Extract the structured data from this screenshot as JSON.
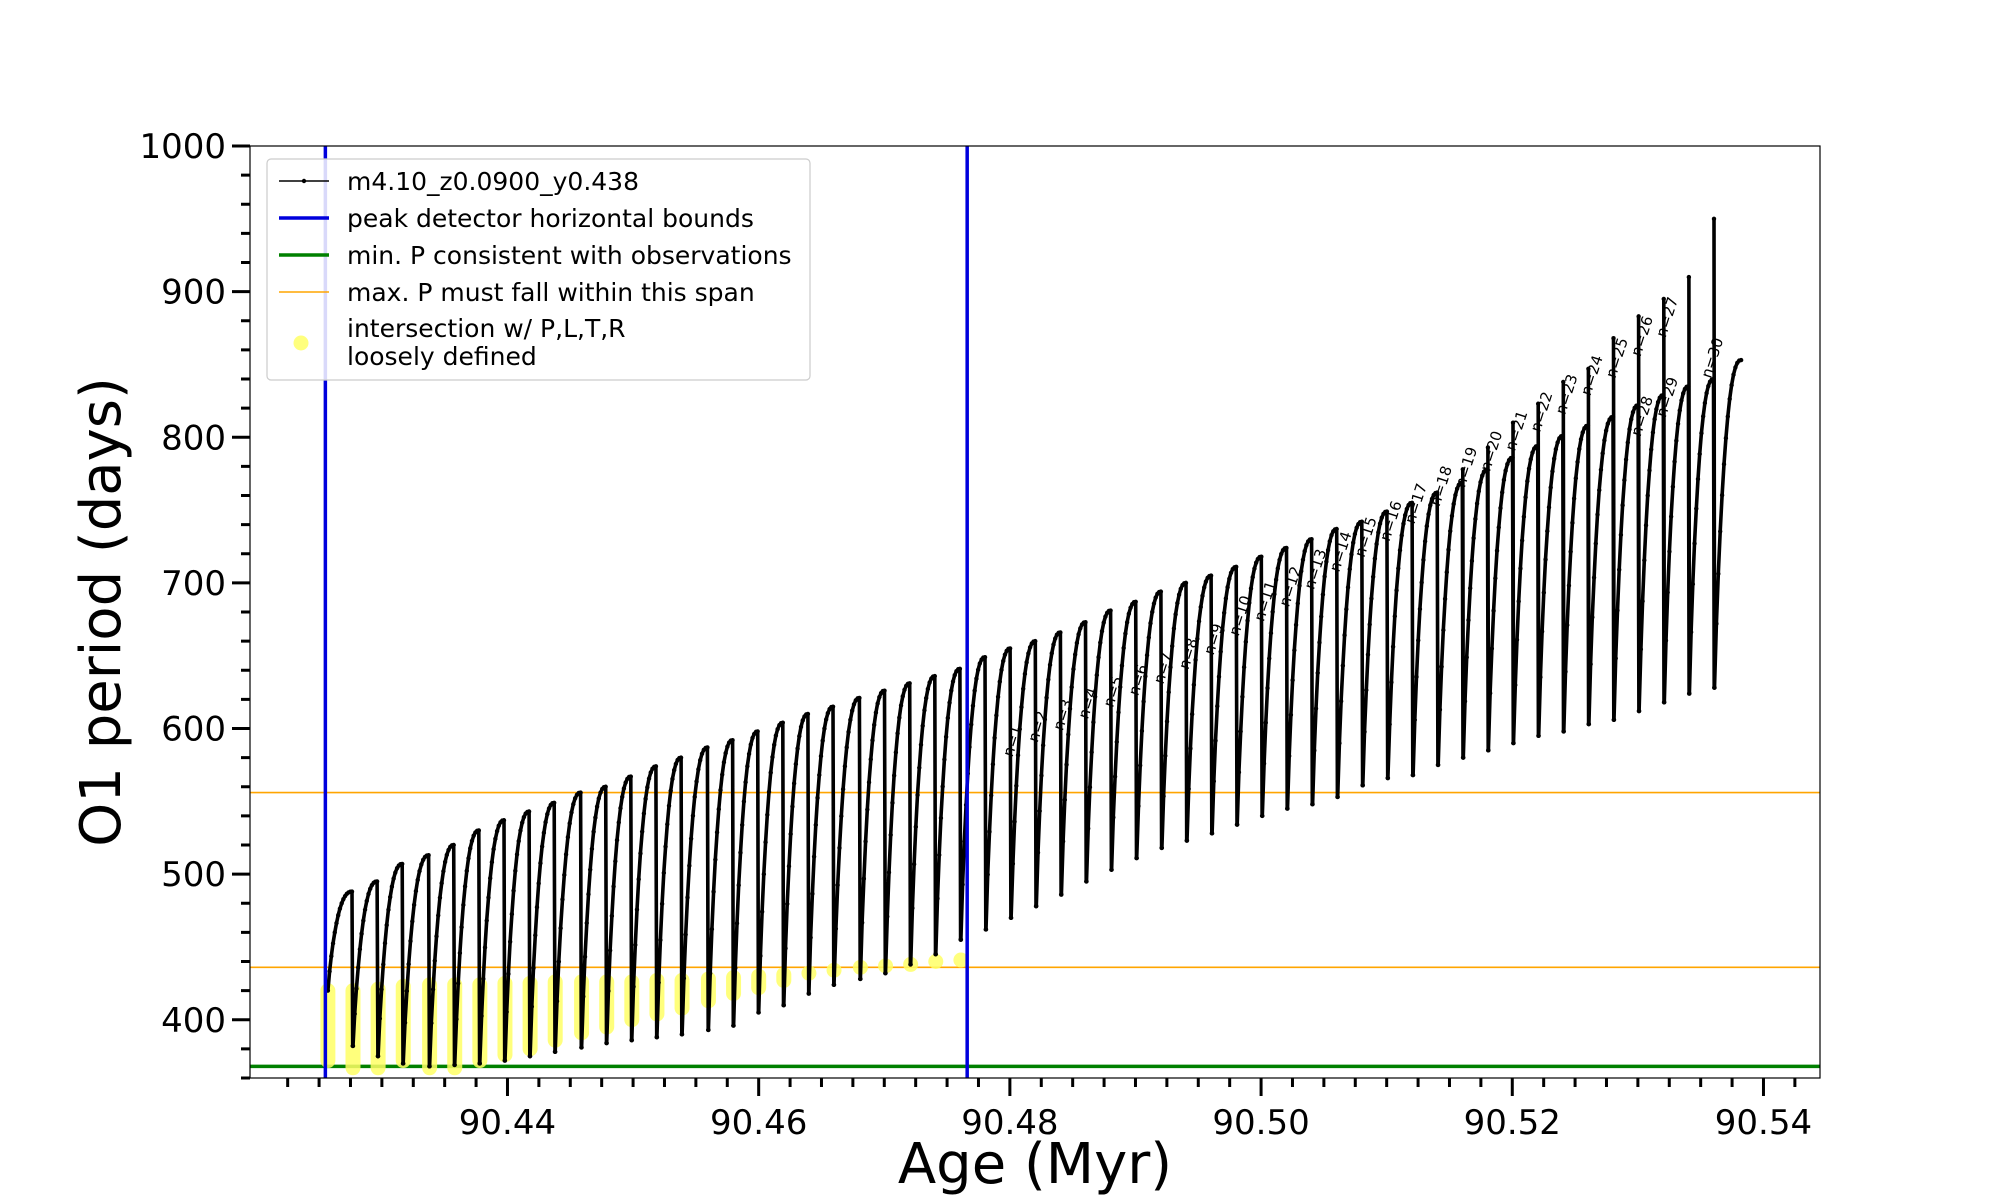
{
  "chart_data": {
    "type": "line",
    "xlabel": "Age (Myr)",
    "ylabel": "O1 period (days)",
    "xlim": [
      90.4195,
      90.5445
    ],
    "ylim": [
      360,
      1000
    ],
    "x_ticks": [
      90.44,
      90.46,
      90.48,
      90.5,
      90.52,
      90.54
    ],
    "x_tick_labels": [
      "90.44",
      "90.46",
      "90.48",
      "90.50",
      "90.52",
      "90.54"
    ],
    "y_ticks": [
      400,
      500,
      600,
      700,
      800,
      900,
      1000
    ],
    "y_tick_labels": [
      "400",
      "500",
      "600",
      "700",
      "800",
      "900",
      "1000"
    ],
    "grid": false,
    "legend_position": "top-left",
    "colors": {
      "model": "#000000",
      "bounds": "#0000dd",
      "min_period": "#008000",
      "max_span": "#ffa500",
      "intersection": "#ffff66"
    },
    "legend": [
      {
        "key": "model",
        "label": "m4.10_z0.0900_y0.438"
      },
      {
        "key": "bounds",
        "label": "peak detector horizontal bounds"
      },
      {
        "key": "min_period",
        "label": "min. P consistent with observations"
      },
      {
        "key": "max_span",
        "label": "max. P must fall within this span"
      },
      {
        "key": "intersection",
        "label_line1": "intersection w/ P,L,T,R",
        "label_line2": "loosely defined"
      }
    ],
    "vertical_lines": [
      90.4255,
      90.4766
    ],
    "min_period_line": 368,
    "max_span_lines": [
      436,
      556
    ],
    "series": [
      {
        "name": "m4.10_z0.0900_y0.438",
        "cycle_x_start": [
          90.4257,
          90.4277,
          90.4297,
          90.4317,
          90.4338,
          90.4358,
          90.4378,
          90.4398,
          90.4418,
          90.4438,
          90.4459,
          90.4479,
          90.4499,
          90.4519,
          90.4539,
          90.456,
          90.458,
          90.46,
          90.462,
          90.464,
          90.466,
          90.4681,
          90.4701,
          90.4721,
          90.4741,
          90.4761,
          90.4781,
          90.4801,
          90.4821,
          90.4841,
          90.4861,
          90.4881,
          90.4901,
          90.4921,
          90.4941,
          90.4961,
          90.4981,
          90.5001,
          90.5021,
          90.5041,
          90.5061,
          90.5081,
          90.5101,
          90.5121,
          90.5141,
          90.5161,
          90.5181,
          90.5201,
          90.5221,
          90.5241,
          90.5261,
          90.5281,
          90.5301,
          90.5321,
          90.5341,
          90.5361
        ],
        "cycle_min": [
          420,
          382,
          375,
          370,
          368,
          369,
          370,
          372,
          375,
          378,
          381,
          384,
          386,
          388,
          390,
          393,
          396,
          405,
          410,
          418,
          424,
          428,
          432,
          438,
          445,
          455,
          462,
          470,
          478,
          486,
          495,
          503,
          511,
          518,
          523,
          528,
          534,
          540,
          545,
          548,
          553,
          561,
          566,
          568,
          575,
          580,
          585,
          590,
          595,
          598,
          603,
          606,
          612,
          618,
          624,
          628
        ],
        "cycle_max": [
          488,
          495,
          507,
          513,
          520,
          530,
          537,
          543,
          549,
          556,
          560,
          567,
          574,
          580,
          587,
          592,
          598,
          604,
          610,
          615,
          621,
          626,
          631,
          636,
          641,
          649,
          655,
          660,
          666,
          673,
          681,
          687,
          694,
          700,
          705,
          711,
          718,
          724,
          730,
          737,
          742,
          749,
          755,
          762,
          769,
          778,
          786,
          794,
          801,
          808,
          814,
          822,
          829,
          835,
          840,
          853
        ],
        "spike_max": [
          null,
          null,
          null,
          null,
          null,
          null,
          null,
          null,
          null,
          null,
          null,
          null,
          null,
          null,
          null,
          null,
          null,
          null,
          null,
          null,
          null,
          null,
          null,
          null,
          null,
          null,
          null,
          null,
          null,
          null,
          null,
          null,
          null,
          null,
          null,
          null,
          null,
          null,
          null,
          null,
          null,
          null,
          null,
          null,
          null,
          778,
          793,
          810,
          823,
          838,
          847,
          868,
          883,
          895,
          910,
          950
        ]
      }
    ],
    "intersection_points": {
      "x": [
        90.4257,
        90.4277,
        90.4297,
        90.4317,
        90.4338,
        90.4358,
        90.4378,
        90.4398,
        90.4418,
        90.4438,
        90.4459,
        90.4479,
        90.4499,
        90.4519,
        90.4539,
        90.456,
        90.458,
        90.46,
        90.462,
        90.464,
        90.466,
        90.4681,
        90.4701,
        90.4721,
        90.4741,
        90.4761
      ],
      "y_low": [
        372,
        367,
        367,
        372,
        367,
        367,
        372,
        376,
        380,
        386,
        391,
        395,
        400,
        404,
        408,
        413,
        418,
        422,
        427,
        431,
        436,
        438,
        440,
        440,
        441,
        441
      ],
      "y_high": [
        420,
        420,
        421,
        423,
        424,
        424,
        424,
        425,
        425,
        426,
        426,
        426,
        426,
        427,
        427,
        428,
        429,
        430,
        431,
        432,
        434,
        436,
        437,
        438,
        440,
        441
      ]
    },
    "cycle_labels": [
      {
        "label": "n=1",
        "x": 90.4802,
        "y": 580
      },
      {
        "label": "n=2",
        "x": 90.4822,
        "y": 590
      },
      {
        "label": "n=3",
        "x": 90.4842,
        "y": 598
      },
      {
        "label": "n=4",
        "x": 90.4862,
        "y": 606
      },
      {
        "label": "n=5",
        "x": 90.4882,
        "y": 614
      },
      {
        "label": "n=6",
        "x": 90.4902,
        "y": 622
      },
      {
        "label": "n=7",
        "x": 90.4922,
        "y": 630
      },
      {
        "label": "n=8",
        "x": 90.4942,
        "y": 640
      },
      {
        "label": "n=9",
        "x": 90.4962,
        "y": 650
      },
      {
        "label": "n=10",
        "x": 90.4982,
        "y": 663
      },
      {
        "label": "n=11",
        "x": 90.5002,
        "y": 673
      },
      {
        "label": "n=12",
        "x": 90.5022,
        "y": 683
      },
      {
        "label": "n=13",
        "x": 90.5042,
        "y": 695
      },
      {
        "label": "n=14",
        "x": 90.5062,
        "y": 707
      },
      {
        "label": "n=15",
        "x": 90.5082,
        "y": 717
      },
      {
        "label": "n=16",
        "x": 90.5102,
        "y": 728
      },
      {
        "label": "n=17",
        "x": 90.5122,
        "y": 740
      },
      {
        "label": "n=18",
        "x": 90.5142,
        "y": 752
      },
      {
        "label": "n=19",
        "x": 90.5162,
        "y": 765
      },
      {
        "label": "n=20",
        "x": 90.5182,
        "y": 776
      },
      {
        "label": "n=21",
        "x": 90.5202,
        "y": 790
      },
      {
        "label": "n=22",
        "x": 90.5222,
        "y": 803
      },
      {
        "label": "n=23",
        "x": 90.5242,
        "y": 815
      },
      {
        "label": "n=24",
        "x": 90.5262,
        "y": 828
      },
      {
        "label": "n=25",
        "x": 90.5282,
        "y": 840
      },
      {
        "label": "n=26",
        "x": 90.5302,
        "y": 855
      },
      {
        "label": "n=27",
        "x": 90.5322,
        "y": 868
      },
      {
        "label": "n=28",
        "x": 90.5302,
        "y": 800
      },
      {
        "label": "n=29",
        "x": 90.5322,
        "y": 813
      },
      {
        "label": "n=30",
        "x": 90.5358,
        "y": 840
      }
    ]
  }
}
